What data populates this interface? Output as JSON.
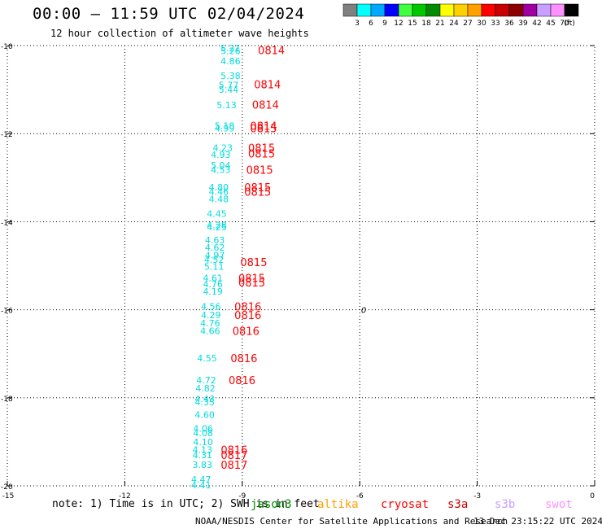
{
  "header": {
    "title": "00:00 – 11:59 UTC 02/04/2024",
    "subtitle": "12 hour collection of altimeter wave heights"
  },
  "colorbar": {
    "colors": [
      "#808080",
      "#00ffff",
      "#00a8ff",
      "#0000ff",
      "#40ff40",
      "#00c800",
      "#008c00",
      "#ffff00",
      "#ffd000",
      "#ffa000",
      "#ff0000",
      "#c80000",
      "#8c0000",
      "#a000a0",
      "#c8a0ff",
      "#ff90ff",
      "#000000"
    ],
    "labels": [
      "3",
      "6",
      "9",
      "12",
      "15",
      "18",
      "21",
      "24",
      "27",
      "30",
      "33",
      "36",
      "39",
      "42",
      "45",
      "70",
      "(ft)"
    ]
  },
  "footer": {
    "note": "note:  1) Time is in UTC; 2) SWH is in feet",
    "credit": "NOAA/NESDIS Center for Satellite Applications and Research",
    "timestamp": "13 Dec 23:15:22 UTC 2024"
  },
  "missions": [
    {
      "name": "jason3",
      "color": "#008c00"
    },
    {
      "name": "altika",
      "color": "#ffa000"
    },
    {
      "name": "cryosat",
      "color": "#ff0000"
    },
    {
      "name": "s3a",
      "color": "#c80000"
    },
    {
      "name": "s3b",
      "color": "#c8a0ff"
    },
    {
      "name": "swot",
      "color": "#ff90ff"
    }
  ],
  "chart_data": {
    "type": "scatter",
    "xlim": [
      -15,
      0
    ],
    "ylim": [
      -20,
      -10
    ],
    "xticks": [
      -15,
      -12,
      -9,
      -6,
      -3,
      0
    ],
    "yticks": [
      -10,
      -12,
      -14,
      -16,
      -18,
      -20
    ],
    "grid": true,
    "wave_labels": [
      {
        "x": -9.3,
        "y": -10.06,
        "text": "5.21"
      },
      {
        "x": -9.3,
        "y": -10.12,
        "text": "5.26"
      },
      {
        "x": -9.3,
        "y": -10.35,
        "text": "4.86"
      },
      {
        "x": -9.3,
        "y": -10.68,
        "text": "5.38"
      },
      {
        "x": -9.35,
        "y": -10.9,
        "text": "5.77"
      },
      {
        "x": -9.35,
        "y": -11.0,
        "text": "5.44"
      },
      {
        "x": -9.4,
        "y": -11.35,
        "text": "5.13"
      },
      {
        "x": -9.45,
        "y": -11.82,
        "text": "5.18"
      },
      {
        "x": -9.45,
        "y": -11.88,
        "text": "4.99"
      },
      {
        "x": -9.5,
        "y": -12.32,
        "text": "4.23"
      },
      {
        "x": -9.55,
        "y": -12.48,
        "text": "4.93"
      },
      {
        "x": -9.55,
        "y": -12.72,
        "text": "5.04"
      },
      {
        "x": -9.55,
        "y": -12.82,
        "text": "4.53"
      },
      {
        "x": -9.6,
        "y": -13.22,
        "text": "4.80"
      },
      {
        "x": -9.6,
        "y": -13.32,
        "text": "4.46"
      },
      {
        "x": -9.6,
        "y": -13.48,
        "text": "4.48"
      },
      {
        "x": -9.65,
        "y": -13.82,
        "text": "4.45"
      },
      {
        "x": -9.65,
        "y": -14.08,
        "text": "4.28"
      },
      {
        "x": -9.65,
        "y": -14.12,
        "text": "4.25"
      },
      {
        "x": -9.7,
        "y": -14.42,
        "text": "4.63"
      },
      {
        "x": -9.7,
        "y": -14.58,
        "text": "4.62"
      },
      {
        "x": -9.7,
        "y": -14.76,
        "text": "4.97"
      },
      {
        "x": -9.72,
        "y": -14.86,
        "text": "4.52"
      },
      {
        "x": -9.72,
        "y": -15.02,
        "text": "5.11"
      },
      {
        "x": -9.75,
        "y": -15.28,
        "text": "4.61"
      },
      {
        "x": -9.75,
        "y": -15.42,
        "text": "4.76"
      },
      {
        "x": -9.75,
        "y": -15.58,
        "text": "4.19"
      },
      {
        "x": -9.8,
        "y": -15.92,
        "text": "4.56"
      },
      {
        "x": -9.8,
        "y": -16.12,
        "text": "4.29"
      },
      {
        "x": -9.82,
        "y": -16.3,
        "text": "4.76"
      },
      {
        "x": -9.82,
        "y": -16.48,
        "text": "4.66"
      },
      {
        "x": -9.9,
        "y": -17.1,
        "text": "4.55"
      },
      {
        "x": -9.92,
        "y": -17.6,
        "text": "4.72"
      },
      {
        "x": -9.94,
        "y": -17.78,
        "text": "4.82"
      },
      {
        "x": -9.96,
        "y": -18.02,
        "text": "4.43"
      },
      {
        "x": -9.96,
        "y": -18.1,
        "text": "4.35"
      },
      {
        "x": -9.96,
        "y": -18.38,
        "text": "4.60"
      },
      {
        "x": -10.0,
        "y": -18.7,
        "text": "4.06"
      },
      {
        "x": -10.0,
        "y": -18.8,
        "text": "4.08"
      },
      {
        "x": -10.0,
        "y": -19.0,
        "text": "4.10"
      },
      {
        "x": -10.02,
        "y": -19.18,
        "text": "4.13"
      },
      {
        "x": -10.02,
        "y": -19.3,
        "text": "4.31"
      },
      {
        "x": -10.02,
        "y": -19.52,
        "text": "3.83"
      },
      {
        "x": -10.05,
        "y": -19.85,
        "text": "4.47"
      },
      {
        "x": -10.05,
        "y": -19.98,
        "text": "4.41"
      }
    ],
    "time_labels": [
      {
        "x": -8.6,
        "y": -10.1,
        "text": "0814"
      },
      {
        "x": -8.7,
        "y": -10.88,
        "text": "0814"
      },
      {
        "x": -8.75,
        "y": -11.34,
        "text": "0814"
      },
      {
        "x": -8.8,
        "y": -11.82,
        "text": "0814"
      },
      {
        "x": -8.8,
        "y": -11.88,
        "text": "0815"
      },
      {
        "x": -8.85,
        "y": -12.32,
        "text": "0815"
      },
      {
        "x": -8.85,
        "y": -12.45,
        "text": "0815"
      },
      {
        "x": -8.9,
        "y": -12.82,
        "text": "0815"
      },
      {
        "x": -8.95,
        "y": -13.22,
        "text": "0815"
      },
      {
        "x": -8.95,
        "y": -13.32,
        "text": "0815"
      },
      {
        "x": -9.05,
        "y": -14.92,
        "text": "0815"
      },
      {
        "x": -9.1,
        "y": -15.28,
        "text": "0815"
      },
      {
        "x": -9.1,
        "y": -15.38,
        "text": "0815"
      },
      {
        "x": -9.2,
        "y": -15.92,
        "text": "0816"
      },
      {
        "x": -9.2,
        "y": -16.12,
        "text": "0816"
      },
      {
        "x": -9.25,
        "y": -16.48,
        "text": "0816"
      },
      {
        "x": -9.3,
        "y": -17.1,
        "text": "0816"
      },
      {
        "x": -9.35,
        "y": -17.6,
        "text": "0816"
      },
      {
        "x": -9.55,
        "y": -19.18,
        "text": "0816"
      },
      {
        "x": -9.55,
        "y": -19.3,
        "text": "0817"
      },
      {
        "x": -9.55,
        "y": -19.52,
        "text": "0817"
      }
    ],
    "marker_label": {
      "x": -5.9,
      "y": -16.0,
      "text": "0"
    }
  }
}
